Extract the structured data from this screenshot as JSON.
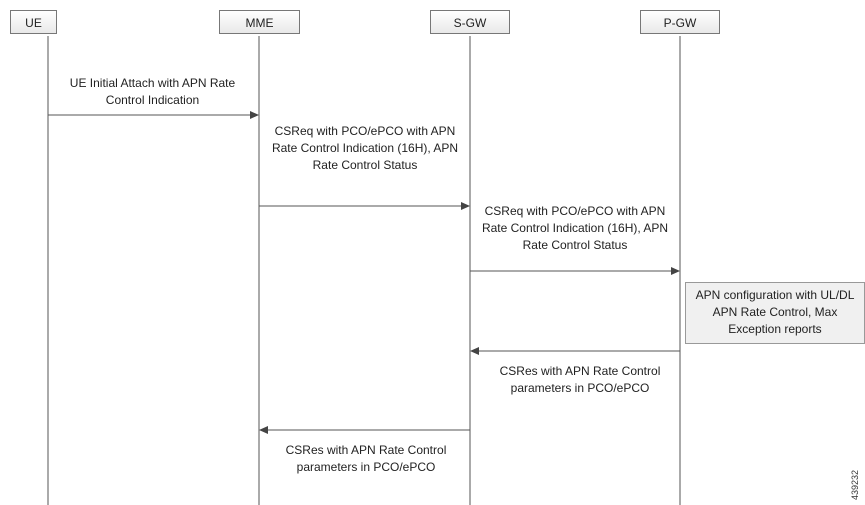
{
  "entities": [
    "UE",
    "MME",
    "S-GW",
    "P-GW"
  ],
  "messages": {
    "m1": "UE Initial Attach with APN Rate Control Indication",
    "m2": "CSReq with PCO/ePCO with APN Rate Control Indication (16H), APN Rate Control Status",
    "m3": "CSReq with PCO/ePCO with APN Rate Control Indication (16H), APN Rate Control Status",
    "m4": "CSRes with APN Rate Control parameters in PCO/ePCO",
    "m5": "CSRes with APN Rate Control parameters in PCO/ePCO"
  },
  "note": "APN configuration with UL/DL APN Rate Control, Max Exception reports",
  "figure_id": "439232"
}
